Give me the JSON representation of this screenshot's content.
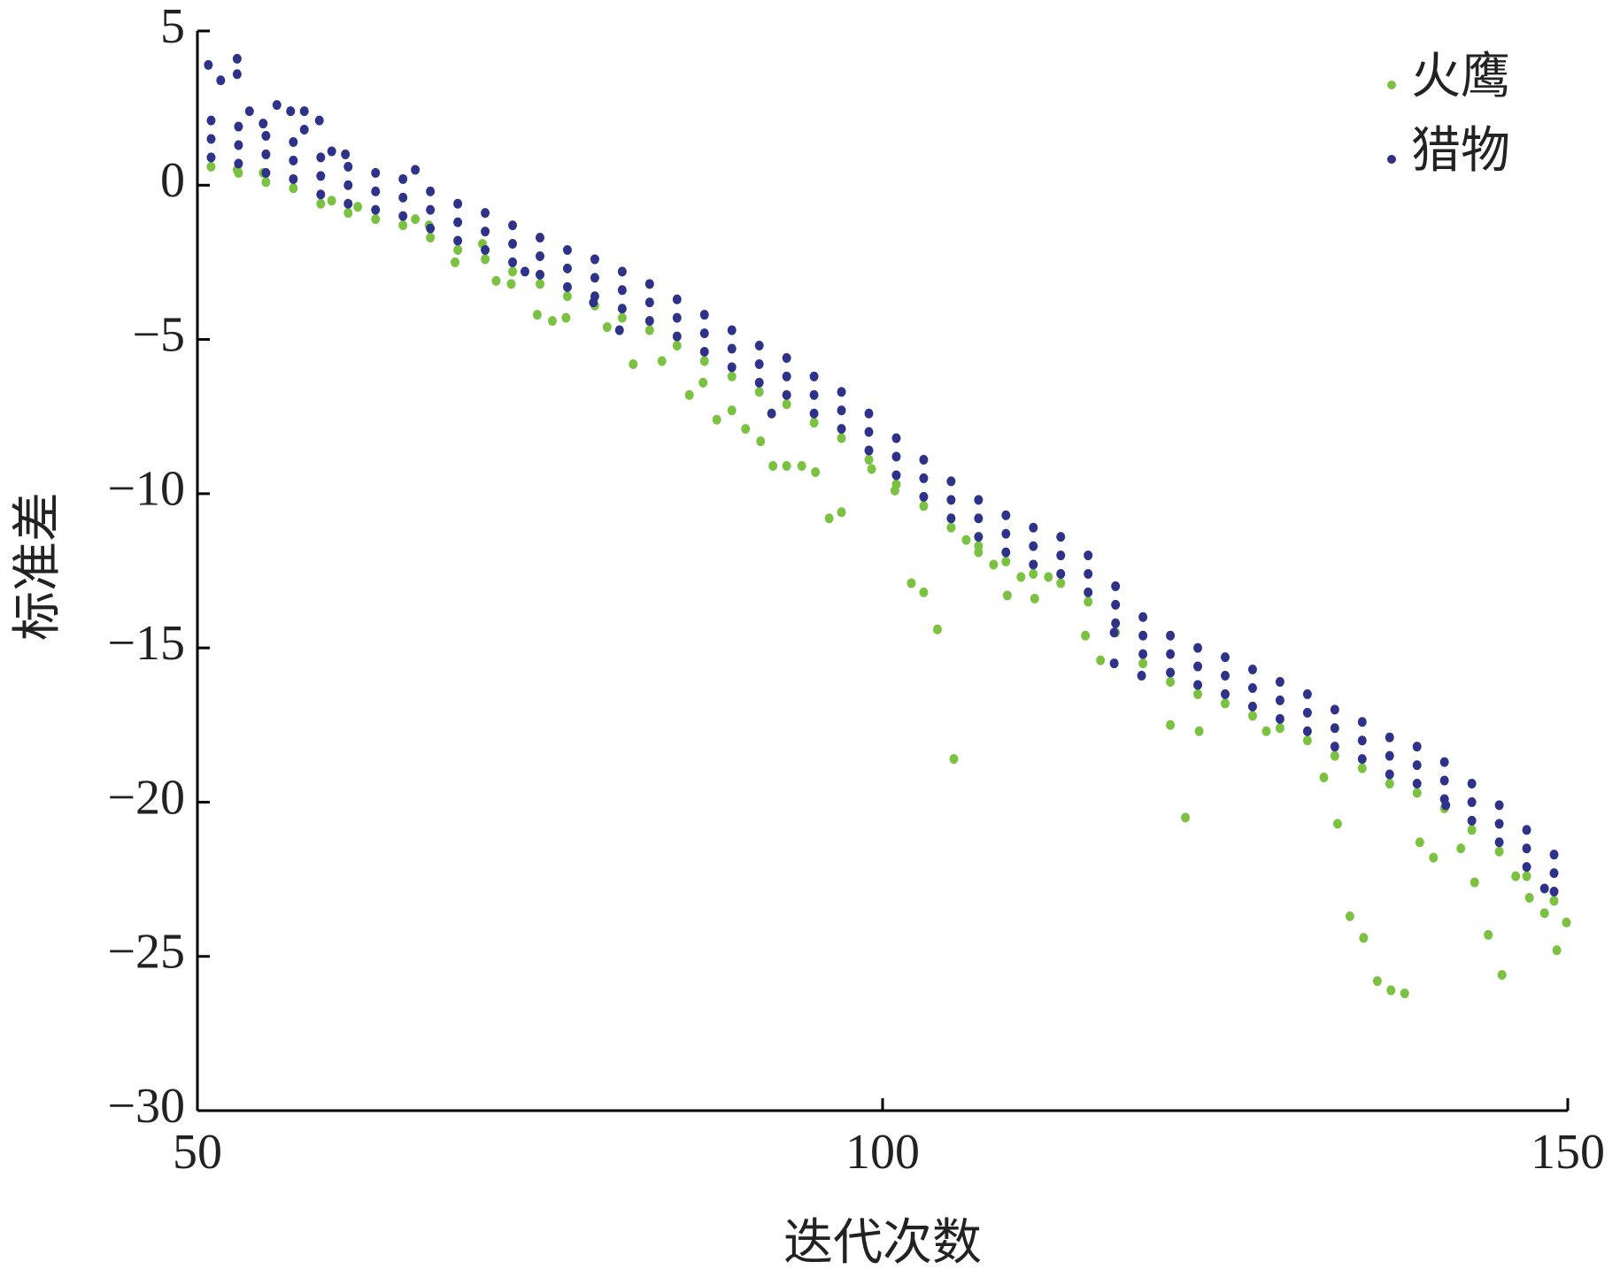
{
  "chart_data": {
    "type": "scatter",
    "xlabel": "迭代次数",
    "ylabel": "标准差",
    "xlim": [
      50,
      150
    ],
    "ylim": [
      -30,
      5
    ],
    "xticks": [
      50,
      100,
      150
    ],
    "yticks": [
      5,
      0,
      {
        "value": -5,
        "label": "−5"
      },
      {
        "value": -10,
        "label": "−10"
      },
      {
        "value": -15,
        "label": "−15"
      },
      {
        "value": -20,
        "label": "−20"
      },
      {
        "value": -25,
        "label": "−25"
      },
      {
        "value": -30,
        "label": "−30"
      }
    ],
    "legend": "upper right",
    "series": [
      {
        "name": "火鹰",
        "color": "#7cc242",
        "x": [
          51,
          53,
          55,
          57,
          59,
          61,
          63,
          65,
          67,
          69,
          71,
          73,
          75,
          77,
          79,
          81,
          83,
          85,
          87,
          89,
          91,
          93,
          95,
          97,
          99,
          101,
          103,
          105,
          107,
          109,
          111,
          113,
          115,
          117,
          119,
          121,
          123,
          125,
          127,
          129,
          131,
          133,
          135,
          137,
          139,
          141,
          143,
          145,
          147,
          149,
          52.9,
          54.8,
          59.8,
          61.7,
          65.9,
          66.9,
          68.8,
          70.8,
          71.8,
          72.9,
          74.8,
          75.9,
          76.9,
          79.9,
          81.8,
          83.9,
          85.9,
          86.9,
          87.9,
          89,
          90,
          91.1,
          92,
          93,
          94.1,
          95.1,
          96.1,
          97,
          99.2,
          100.9,
          102.1,
          103,
          104,
          105.2,
          106.1,
          107,
          108.1,
          109.1,
          110.1,
          111.1,
          112.1,
          114.8,
          115.9,
          121,
          123.1,
          122.1,
          128,
          132.2,
          133.2,
          134.1,
          135.1,
          136.1,
          137.1,
          138.1,
          139.2,
          140.2,
          142.2,
          143.2,
          144.2,
          145.2,
          146.2,
          147.2,
          148.3,
          149.2,
          149.9
        ],
        "y": [
          0.6,
          0.4,
          0.1,
          -0.1,
          -0.6,
          -0.9,
          -1.1,
          -1.3,
          -1.7,
          -2.1,
          -2.4,
          -2.8,
          -3.2,
          -3.6,
          -3.9,
          -4.3,
          -4.7,
          -5.2,
          -5.7,
          -6.2,
          -6.7,
          -7.1,
          -7.7,
          -8.2,
          -8.9,
          -9.7,
          -10.4,
          -11.1,
          -11.7,
          -12.2,
          -12.6,
          -12.9,
          -13.5,
          -14.5,
          -15.5,
          -16.1,
          -16.5,
          -16.8,
          -17.2,
          -17.6,
          -18,
          -18.5,
          -18.9,
          -19.4,
          -19.7,
          -20.2,
          -20.9,
          -21.6,
          -22.4,
          -23.2,
          0.5,
          0.4,
          -0.5,
          -0.7,
          -1.1,
          -1.3,
          -2.5,
          -1.9,
          -3.1,
          -3.2,
          -4.2,
          -4.4,
          -4.3,
          -4.6,
          -5.8,
          -5.7,
          -6.8,
          -6.4,
          -7.6,
          -7.3,
          -7.9,
          -8.3,
          -9.1,
          -9.1,
          -9.1,
          -9.3,
          -10.8,
          -10.6,
          -9.2,
          -9.9,
          -12.9,
          -13.2,
          -14.4,
          -18.6,
          -11.5,
          -11.9,
          -12.3,
          -13.3,
          -12.7,
          -13.4,
          -12.7,
          -14.6,
          -15.4,
          -17.5,
          -17.7,
          -20.5,
          -17.7,
          -19.2,
          -20.7,
          -23.7,
          -24.4,
          -25.8,
          -26.1,
          -26.2,
          -21.3,
          -21.8,
          -21.5,
          -22.6,
          -24.3,
          -25.6,
          -22.4,
          -23.1,
          -23.6,
          -24.8,
          -23.9
        ]
      },
      {
        "name": "猎物",
        "color": "#2e3389",
        "x": [
          51,
          51,
          51,
          53,
          53,
          53,
          55,
          55,
          55,
          57,
          57,
          57,
          59,
          59,
          59,
          61,
          61,
          61,
          63,
          63,
          63,
          65,
          65,
          65,
          67,
          67,
          67,
          69,
          69,
          69,
          71,
          71,
          71,
          73,
          73,
          73,
          75,
          75,
          75,
          77,
          77,
          77,
          79,
          79,
          79,
          81,
          81,
          81,
          83,
          83,
          83,
          85,
          85,
          85,
          87,
          87,
          87,
          89,
          89,
          89,
          91,
          91,
          91,
          93,
          93,
          93,
          95,
          95,
          95,
          97,
          97,
          97,
          99,
          99,
          99,
          101,
          101,
          101,
          103,
          103,
          103,
          105,
          105,
          105,
          107,
          107,
          107,
          109,
          109,
          109,
          111,
          111,
          111,
          113,
          113,
          113,
          115,
          115,
          115,
          117,
          117,
          117,
          119,
          119,
          119,
          121,
          121,
          121,
          123,
          123,
          123,
          125,
          125,
          125,
          127,
          127,
          127,
          129,
          129,
          129,
          131,
          131,
          131,
          133,
          133,
          133,
          135,
          135,
          135,
          137,
          137,
          137,
          139,
          139,
          139,
          141,
          141,
          141,
          143,
          143,
          143,
          145,
          145,
          145,
          147,
          147,
          147,
          149,
          149,
          149,
          50.8,
          51.7,
          52.9,
          52.9,
          53.8,
          54.8,
          55.8,
          56.8,
          57.8,
          57.8,
          58.9,
          59.8,
          60.8,
          65.9,
          73.9,
          78.9,
          80.8,
          91.9,
          116.9,
          116.9,
          118.9,
          141.1,
          148.3
        ],
        "y": [
          2.1,
          1.5,
          0.9,
          1.9,
          1.3,
          0.7,
          1.6,
          1,
          0.4,
          1.4,
          0.8,
          0.2,
          0.9,
          0.3,
          -0.3,
          0.6,
          0,
          -0.6,
          0.4,
          -0.2,
          -0.8,
          0.2,
          -0.4,
          -1,
          -0.2,
          -0.8,
          -1.4,
          -0.6,
          -1.2,
          -1.8,
          -0.9,
          -1.5,
          -2.1,
          -1.3,
          -1.9,
          -2.5,
          -1.7,
          -2.3,
          -2.9,
          -2.1,
          -2.7,
          -3.3,
          -2.4,
          -3,
          -3.6,
          -2.8,
          -3.4,
          -4,
          -3.2,
          -3.8,
          -4.4,
          -3.7,
          -4.3,
          -4.9,
          -4.2,
          -4.8,
          -5.4,
          -4.7,
          -5.3,
          -5.9,
          -5.2,
          -5.8,
          -6.4,
          -5.6,
          -6.2,
          -6.8,
          -6.2,
          -6.8,
          -7.4,
          -6.7,
          -7.3,
          -7.9,
          -7.4,
          -8,
          -8.6,
          -8.2,
          -8.8,
          -9.4,
          -8.9,
          -9.5,
          -10.1,
          -9.6,
          -10.2,
          -10.8,
          -10.2,
          -10.8,
          -11.4,
          -10.7,
          -11.3,
          -11.9,
          -11.1,
          -11.7,
          -12.3,
          -11.4,
          -12,
          -12.6,
          -12,
          -12.6,
          -13.2,
          -13,
          -13.6,
          -14.2,
          -14,
          -14.6,
          -15.2,
          -14.6,
          -15.2,
          -15.8,
          -15,
          -15.6,
          -16.2,
          -15.3,
          -15.9,
          -16.5,
          -15.7,
          -16.3,
          -16.9,
          -16.1,
          -16.7,
          -17.3,
          -16.5,
          -17.1,
          -17.7,
          -17,
          -17.6,
          -18.2,
          -17.4,
          -18,
          -18.6,
          -17.9,
          -18.5,
          -19.1,
          -18.2,
          -18.8,
          -19.4,
          -18.7,
          -19.3,
          -19.9,
          -19.4,
          -20,
          -20.6,
          -20.1,
          -20.7,
          -21.3,
          -20.9,
          -21.5,
          -22.1,
          -21.7,
          -22.3,
          -22.9,
          3.9,
          3.4,
          4.1,
          3.6,
          2.4,
          2,
          2.6,
          2.4,
          2.4,
          1.8,
          2.1,
          1.1,
          1,
          0.5,
          -2.8,
          -3.8,
          -4.7,
          -7.4,
          -14.5,
          -15.5,
          -15.9,
          -20.1,
          -22.8
        ]
      }
    ]
  }
}
